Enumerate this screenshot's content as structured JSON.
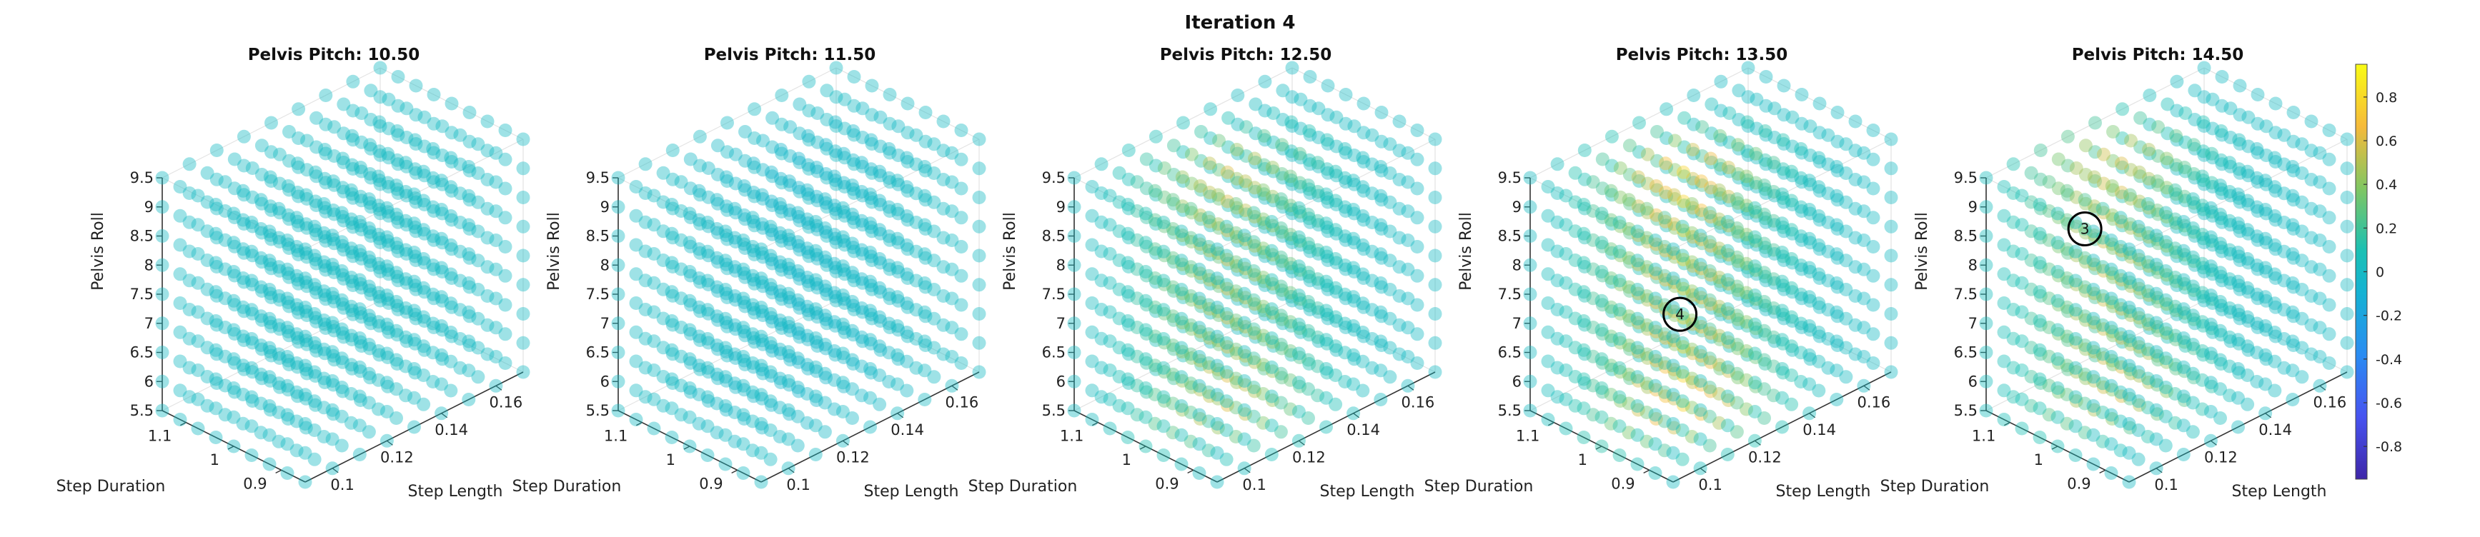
{
  "chart_data": {
    "type": "scatter",
    "title": "Iteration 4",
    "value_range": [
      -0.95,
      0.95
    ],
    "colorbar": {
      "colormap": "parula",
      "ticks": [
        0.8,
        0.6,
        0.4,
        0.2,
        0,
        -0.2,
        -0.4,
        -0.6,
        -0.8
      ],
      "tick_labels": [
        "0.8",
        "0.6",
        "0.4",
        "0.2",
        "0",
        "-0.2",
        "-0.4",
        "-0.6",
        "-0.8"
      ],
      "placement": "right"
    },
    "axes": {
      "x": {
        "label": "Step Length",
        "range": [
          0.09,
          0.17
        ],
        "ticks": [
          0.1,
          0.12,
          0.14,
          0.16
        ],
        "tick_labels": [
          "0.1",
          "0.12",
          "0.14",
          "0.16"
        ]
      },
      "y": {
        "label": "Step Duration",
        "range": [
          0.85,
          1.15
        ],
        "ticks": [
          0.9,
          1,
          1.1
        ],
        "tick_labels": [
          "0.9",
          "1",
          "1.1"
        ]
      },
      "z": {
        "label": "Pelvis Roll",
        "range": [
          5.5,
          9.5
        ],
        "ticks": [
          5.5,
          6,
          6.5,
          7,
          7.5,
          8,
          8.5,
          9,
          9.5
        ],
        "tick_labels": [
          "5.5",
          "6",
          "6.5",
          "7",
          "7.5",
          "8",
          "8.5",
          "9",
          "9.5"
        ]
      }
    },
    "grid": {
      "step_length_points": 9,
      "step_duration_points": 9,
      "pelvis_roll_points": 9
    },
    "panels": [
      {
        "title": "Pelvis Pitch: 10.50",
        "pelvis_pitch": 10.5,
        "peak_value": 0.02,
        "peak_center": [
          0.13,
          1.0
        ],
        "markers": []
      },
      {
        "title": "Pelvis Pitch: 11.50",
        "pelvis_pitch": 11.5,
        "peak_value": -0.05,
        "peak_center": [
          0.13,
          1.0
        ],
        "markers": []
      },
      {
        "title": "Pelvis Pitch: 12.50",
        "pelvis_pitch": 12.5,
        "peak_value": 0.6,
        "peak_center": [
          0.12,
          1.0
        ],
        "markers": []
      },
      {
        "title": "Pelvis Pitch: 13.50",
        "pelvis_pitch": 13.5,
        "peak_value": 0.78,
        "peak_center": [
          0.12,
          1.0
        ],
        "markers": [
          {
            "label": "4",
            "step_length": 0.11,
            "step_duration": 0.95,
            "pelvis_roll": 7.5
          }
        ]
      },
      {
        "title": "Pelvis Pitch: 14.50",
        "pelvis_pitch": 14.5,
        "peak_value": 0.6,
        "peak_center": [
          0.12,
          1.05
        ],
        "markers": [
          {
            "label": "3",
            "step_length": 0.1,
            "step_duration": 1.0,
            "pelvis_roll": 9.0
          }
        ]
      }
    ]
  }
}
